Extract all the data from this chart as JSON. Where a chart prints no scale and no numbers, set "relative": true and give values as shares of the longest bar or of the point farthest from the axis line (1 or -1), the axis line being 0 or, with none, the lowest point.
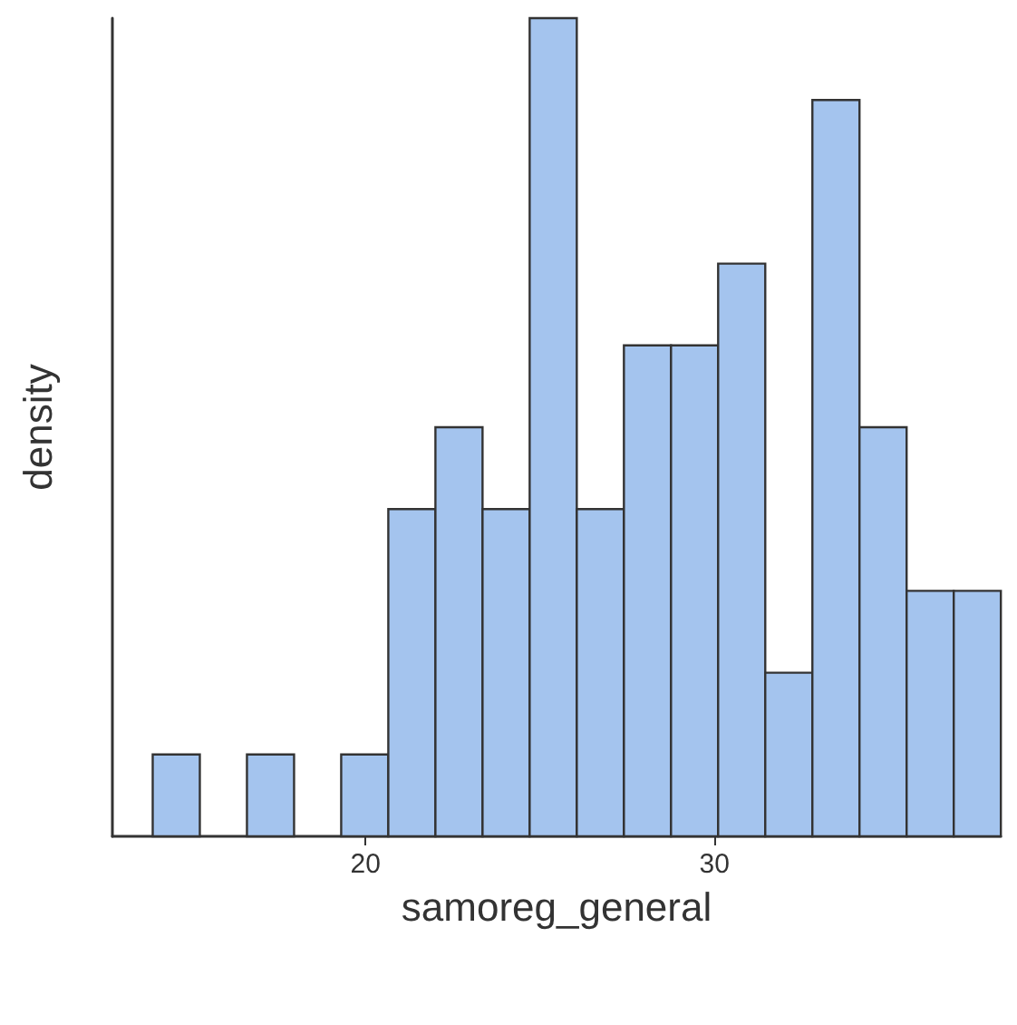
{
  "chart_data": {
    "type": "bar",
    "xlabel": "samoreg_general",
    "ylabel": "density",
    "relative": true,
    "tick_labels": "x",
    "grid": false,
    "x": [
      14.58,
      15.93,
      17.28,
      18.63,
      19.98,
      21.33,
      22.68,
      24.03,
      25.38,
      26.73,
      28.08,
      29.43,
      30.78,
      32.13,
      33.48,
      34.83,
      36.18,
      37.53
    ],
    "values": [
      0.1,
      0,
      0.1,
      0,
      0.1,
      0.4,
      0.5,
      0.4,
      1,
      0.4,
      0.6,
      0.6,
      0.7,
      0.2,
      0.9,
      0.5,
      0.3,
      0.3
    ],
    "color": "#a4c4ee",
    "xlim": [
      12.75,
      38.2
    ],
    "xticks": [
      20,
      30
    ]
  }
}
